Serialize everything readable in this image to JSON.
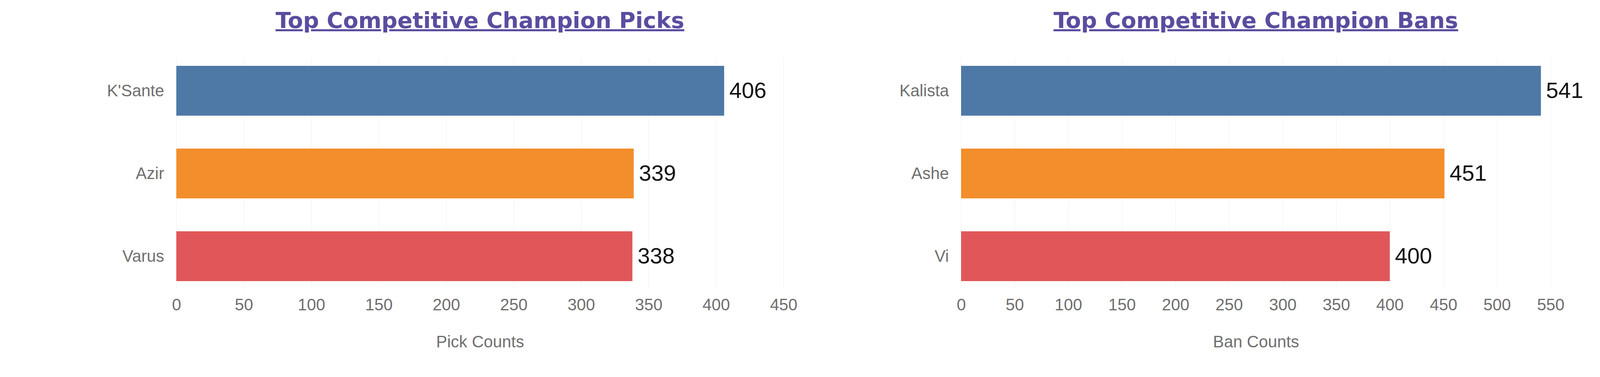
{
  "chart_data": [
    {
      "type": "bar",
      "title": "Top Competitive Champion Picks",
      "orientation": "horizontal",
      "categories": [
        "K'Sante",
        "Azir",
        "Varus"
      ],
      "values": [
        406,
        339,
        338
      ],
      "colors": [
        "#4e79a7",
        "#f28e2b",
        "#e15759"
      ],
      "xlabel": "Pick Counts",
      "xlim": [
        0,
        450
      ],
      "xticks": [
        0,
        50,
        100,
        150,
        200,
        250,
        300,
        350,
        400,
        450
      ],
      "grid": true,
      "data_labels": true
    },
    {
      "type": "bar",
      "title": "Top Competitive Champion Bans",
      "orientation": "horizontal",
      "categories": [
        "Kalista",
        "Ashe",
        "Vi"
      ],
      "values": [
        541,
        451,
        400
      ],
      "colors": [
        "#4e79a7",
        "#f28e2b",
        "#e15759"
      ],
      "xlabel": "Ban Counts",
      "xlim": [
        0,
        550
      ],
      "xticks": [
        0,
        50,
        100,
        150,
        200,
        250,
        300,
        350,
        400,
        450,
        500,
        550
      ],
      "grid": true,
      "data_labels": true
    }
  ]
}
